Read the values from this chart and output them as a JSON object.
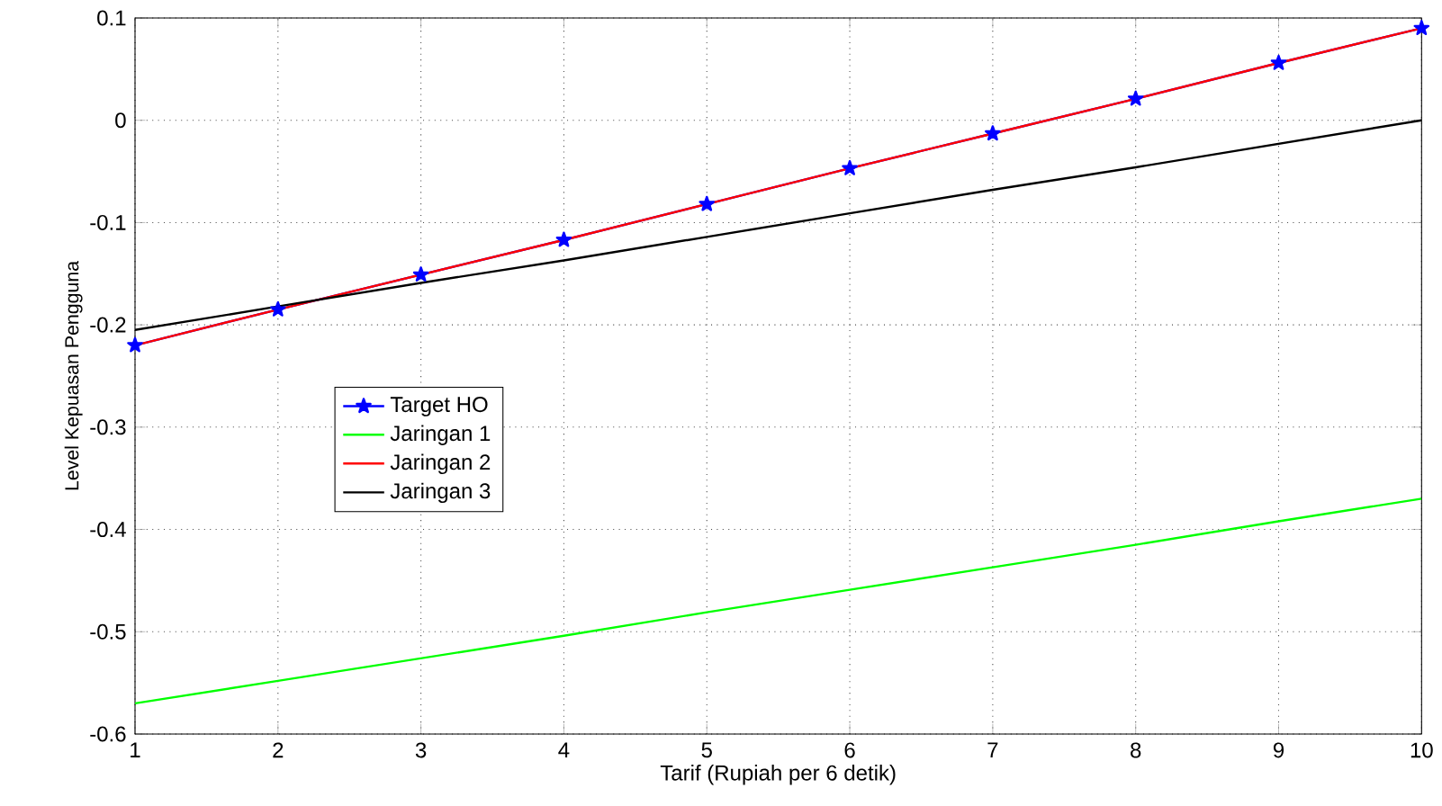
{
  "chart_data": {
    "type": "line",
    "xlabel": "Tarif (Rupiah per 6 detik)",
    "ylabel": "Level Kepuasan Pengguna",
    "x": [
      1,
      2,
      3,
      4,
      5,
      6,
      7,
      8,
      9,
      10
    ],
    "series": [
      {
        "name": "Target HO",
        "color": "#0000ff",
        "marker": "star",
        "values": [
          -0.22,
          -0.185,
          -0.151,
          -0.117,
          -0.082,
          -0.047,
          -0.013,
          0.021,
          0.056,
          0.09
        ]
      },
      {
        "name": "Jaringan 1",
        "color": "#00ff00",
        "marker": "none",
        "values": [
          -0.57,
          -0.548,
          -0.526,
          -0.504,
          -0.481,
          -0.459,
          -0.437,
          -0.415,
          -0.392,
          -0.37
        ]
      },
      {
        "name": "Jaringan 2",
        "color": "#ff0000",
        "marker": "none",
        "values": [
          -0.22,
          -0.185,
          -0.151,
          -0.117,
          -0.082,
          -0.047,
          -0.013,
          0.021,
          0.056,
          0.09
        ]
      },
      {
        "name": "Jaringan 3",
        "color": "#000000",
        "marker": "none",
        "values": [
          -0.205,
          -0.182,
          -0.159,
          -0.137,
          -0.114,
          -0.091,
          -0.068,
          -0.046,
          -0.023,
          0.0
        ]
      }
    ],
    "xlim": [
      1,
      10
    ],
    "xticks": [
      1,
      2,
      3,
      4,
      5,
      6,
      7,
      8,
      9,
      10
    ],
    "ylim": [
      -0.6,
      0.1
    ],
    "yticks": [
      -0.6,
      -0.5,
      -0.4,
      -0.3,
      -0.2,
      -0.1,
      0,
      0.1
    ],
    "grid": true,
    "legend": "left",
    "line_style": "solid"
  }
}
